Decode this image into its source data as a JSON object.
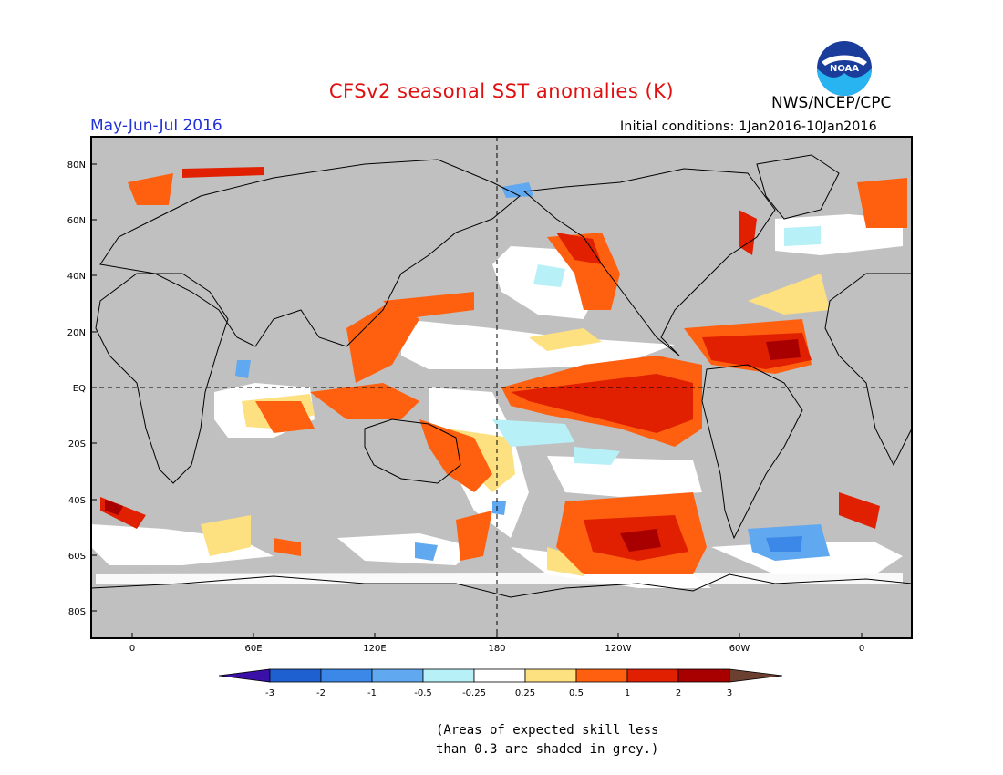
{
  "header": {
    "title": "CFSv2 seasonal SST anomalies (K)",
    "agency": "NWS/NCEP/CPC",
    "period": "May-Jun-Jul 2016",
    "initial_conditions": "Initial conditions: 1Jan2016-10Jan2016",
    "logo_text": "NOAA"
  },
  "map": {
    "lat_ticks": [
      "80N",
      "60N",
      "40N",
      "20N",
      "EQ",
      "20S",
      "40S",
      "60S",
      "80S"
    ],
    "lon_ticks": [
      "0",
      "60E",
      "120E",
      "180",
      "120W",
      "60W",
      "0"
    ],
    "land_color": "#c0c0c0",
    "ocean_neutral_color": "#ffffff"
  },
  "colorbar": {
    "labels": [
      "-3",
      "-2",
      "-1",
      "-0.5",
      "-0.25",
      "0.25",
      "0.5",
      "1",
      "2",
      "3"
    ],
    "colors": [
      "#3a10a8",
      "#1f60d0",
      "#3c88e8",
      "#60a8f0",
      "#b8f0f8",
      "#ffffff",
      "#fde080",
      "#ff6010",
      "#e02000",
      "#a80000",
      "#6b4030"
    ]
  },
  "note": {
    "line1": "(Areas of expected skill less",
    "line2": "than 0.3 are shaded in grey.)"
  }
}
